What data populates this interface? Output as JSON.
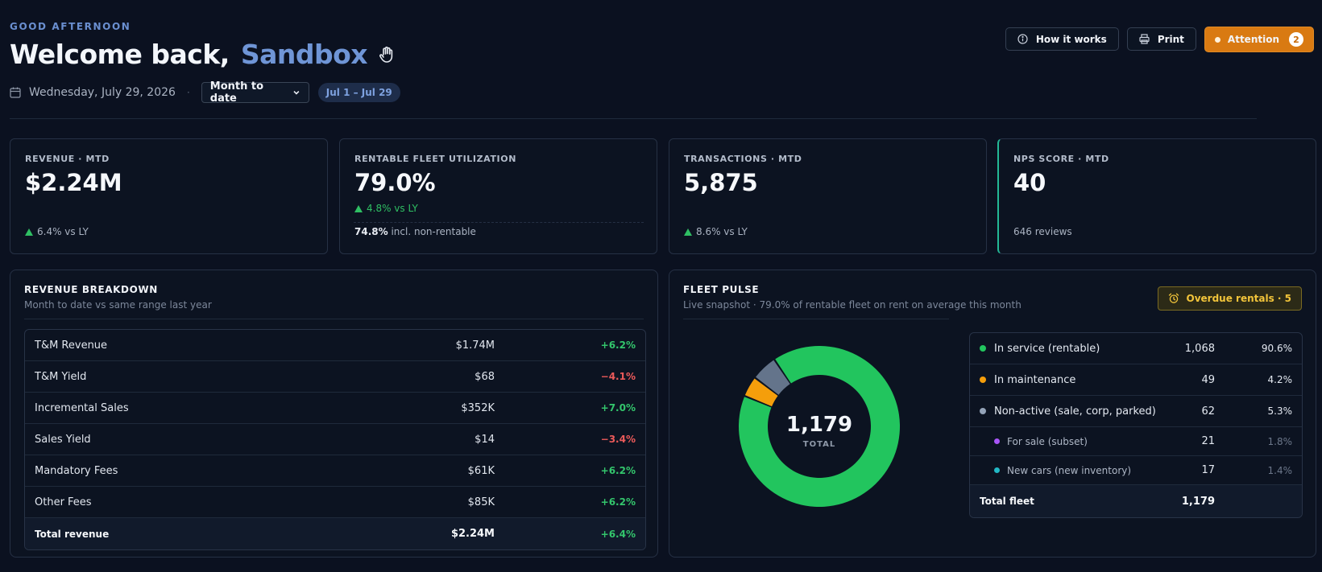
{
  "header": {
    "greeting": "GOOD AFTERNOON",
    "welcome": "Welcome back,",
    "name": "Sandbox",
    "date": "Wednesday, July 29, 2026",
    "range_select": "Month to date",
    "range_pill": "Jul 1 – Jul 29"
  },
  "actions": {
    "how_it_works": "How it works",
    "print": "Print",
    "attention": "Attention",
    "attention_count": "2"
  },
  "kpis": [
    {
      "label": "REVENUE · MTD",
      "value": "$2.24M",
      "delta": "6.4% vs LY"
    },
    {
      "label": "RENTABLE FLEET UTILIZATION",
      "value": "79.0%",
      "delta": "4.8% vs LY",
      "foot_value": "74.8%",
      "foot_text": "incl. non-rentable"
    },
    {
      "label": "TRANSACTIONS · MTD",
      "value": "5,875",
      "delta": "8.6% vs LY"
    },
    {
      "label": "NPS SCORE · MTD",
      "value": "40",
      "foot_text": "646 reviews"
    }
  ],
  "revenue": {
    "title": "REVENUE BREAKDOWN",
    "subtitle": "Month to date vs same range last year",
    "rows": [
      {
        "label": "T&M Revenue",
        "value": "$1.74M",
        "change": "+6.2%"
      },
      {
        "label": "T&M Yield",
        "value": "$68",
        "change": "−4.1%"
      },
      {
        "label": "Incremental Sales",
        "value": "$352K",
        "change": "+7.0%"
      },
      {
        "label": "Sales Yield",
        "value": "$14",
        "change": "−3.4%"
      },
      {
        "label": "Mandatory Fees",
        "value": "$61K",
        "change": "+6.2%"
      },
      {
        "label": "Other Fees",
        "value": "$85K",
        "change": "+6.2%"
      },
      {
        "label": "Total revenue",
        "value": "$2.24M",
        "change": "+6.4%"
      }
    ]
  },
  "fleet": {
    "title": "FLEET PULSE",
    "subtitle": "Live snapshot · 79.0% of rentable fleet on rent on average this month",
    "overdue": "Overdue rentals · 5",
    "total_value": "1,179",
    "total_label": "TOTAL",
    "rows": [
      {
        "label": "In service (rentable)",
        "count": "1,068",
        "pct": "90.6%",
        "color": "#22c55e"
      },
      {
        "label": "In maintenance",
        "count": "49",
        "pct": "4.2%",
        "color": "#f59e0b"
      },
      {
        "label": "Non-active (sale, corp, parked)",
        "count": "62",
        "pct": "5.3%",
        "color": "#94a3b8"
      },
      {
        "label": "For sale (subset)",
        "count": "21",
        "pct": "1.8%",
        "color": "#a855f7"
      },
      {
        "label": "New cars (new inventory)",
        "count": "17",
        "pct": "1.4%",
        "color": "#22b8c5"
      },
      {
        "label": "Total fleet",
        "count": "1,179",
        "pct": ""
      }
    ],
    "donut_colors": [
      "#22c55e",
      "#f59e0b",
      "#64748b"
    ]
  }
}
